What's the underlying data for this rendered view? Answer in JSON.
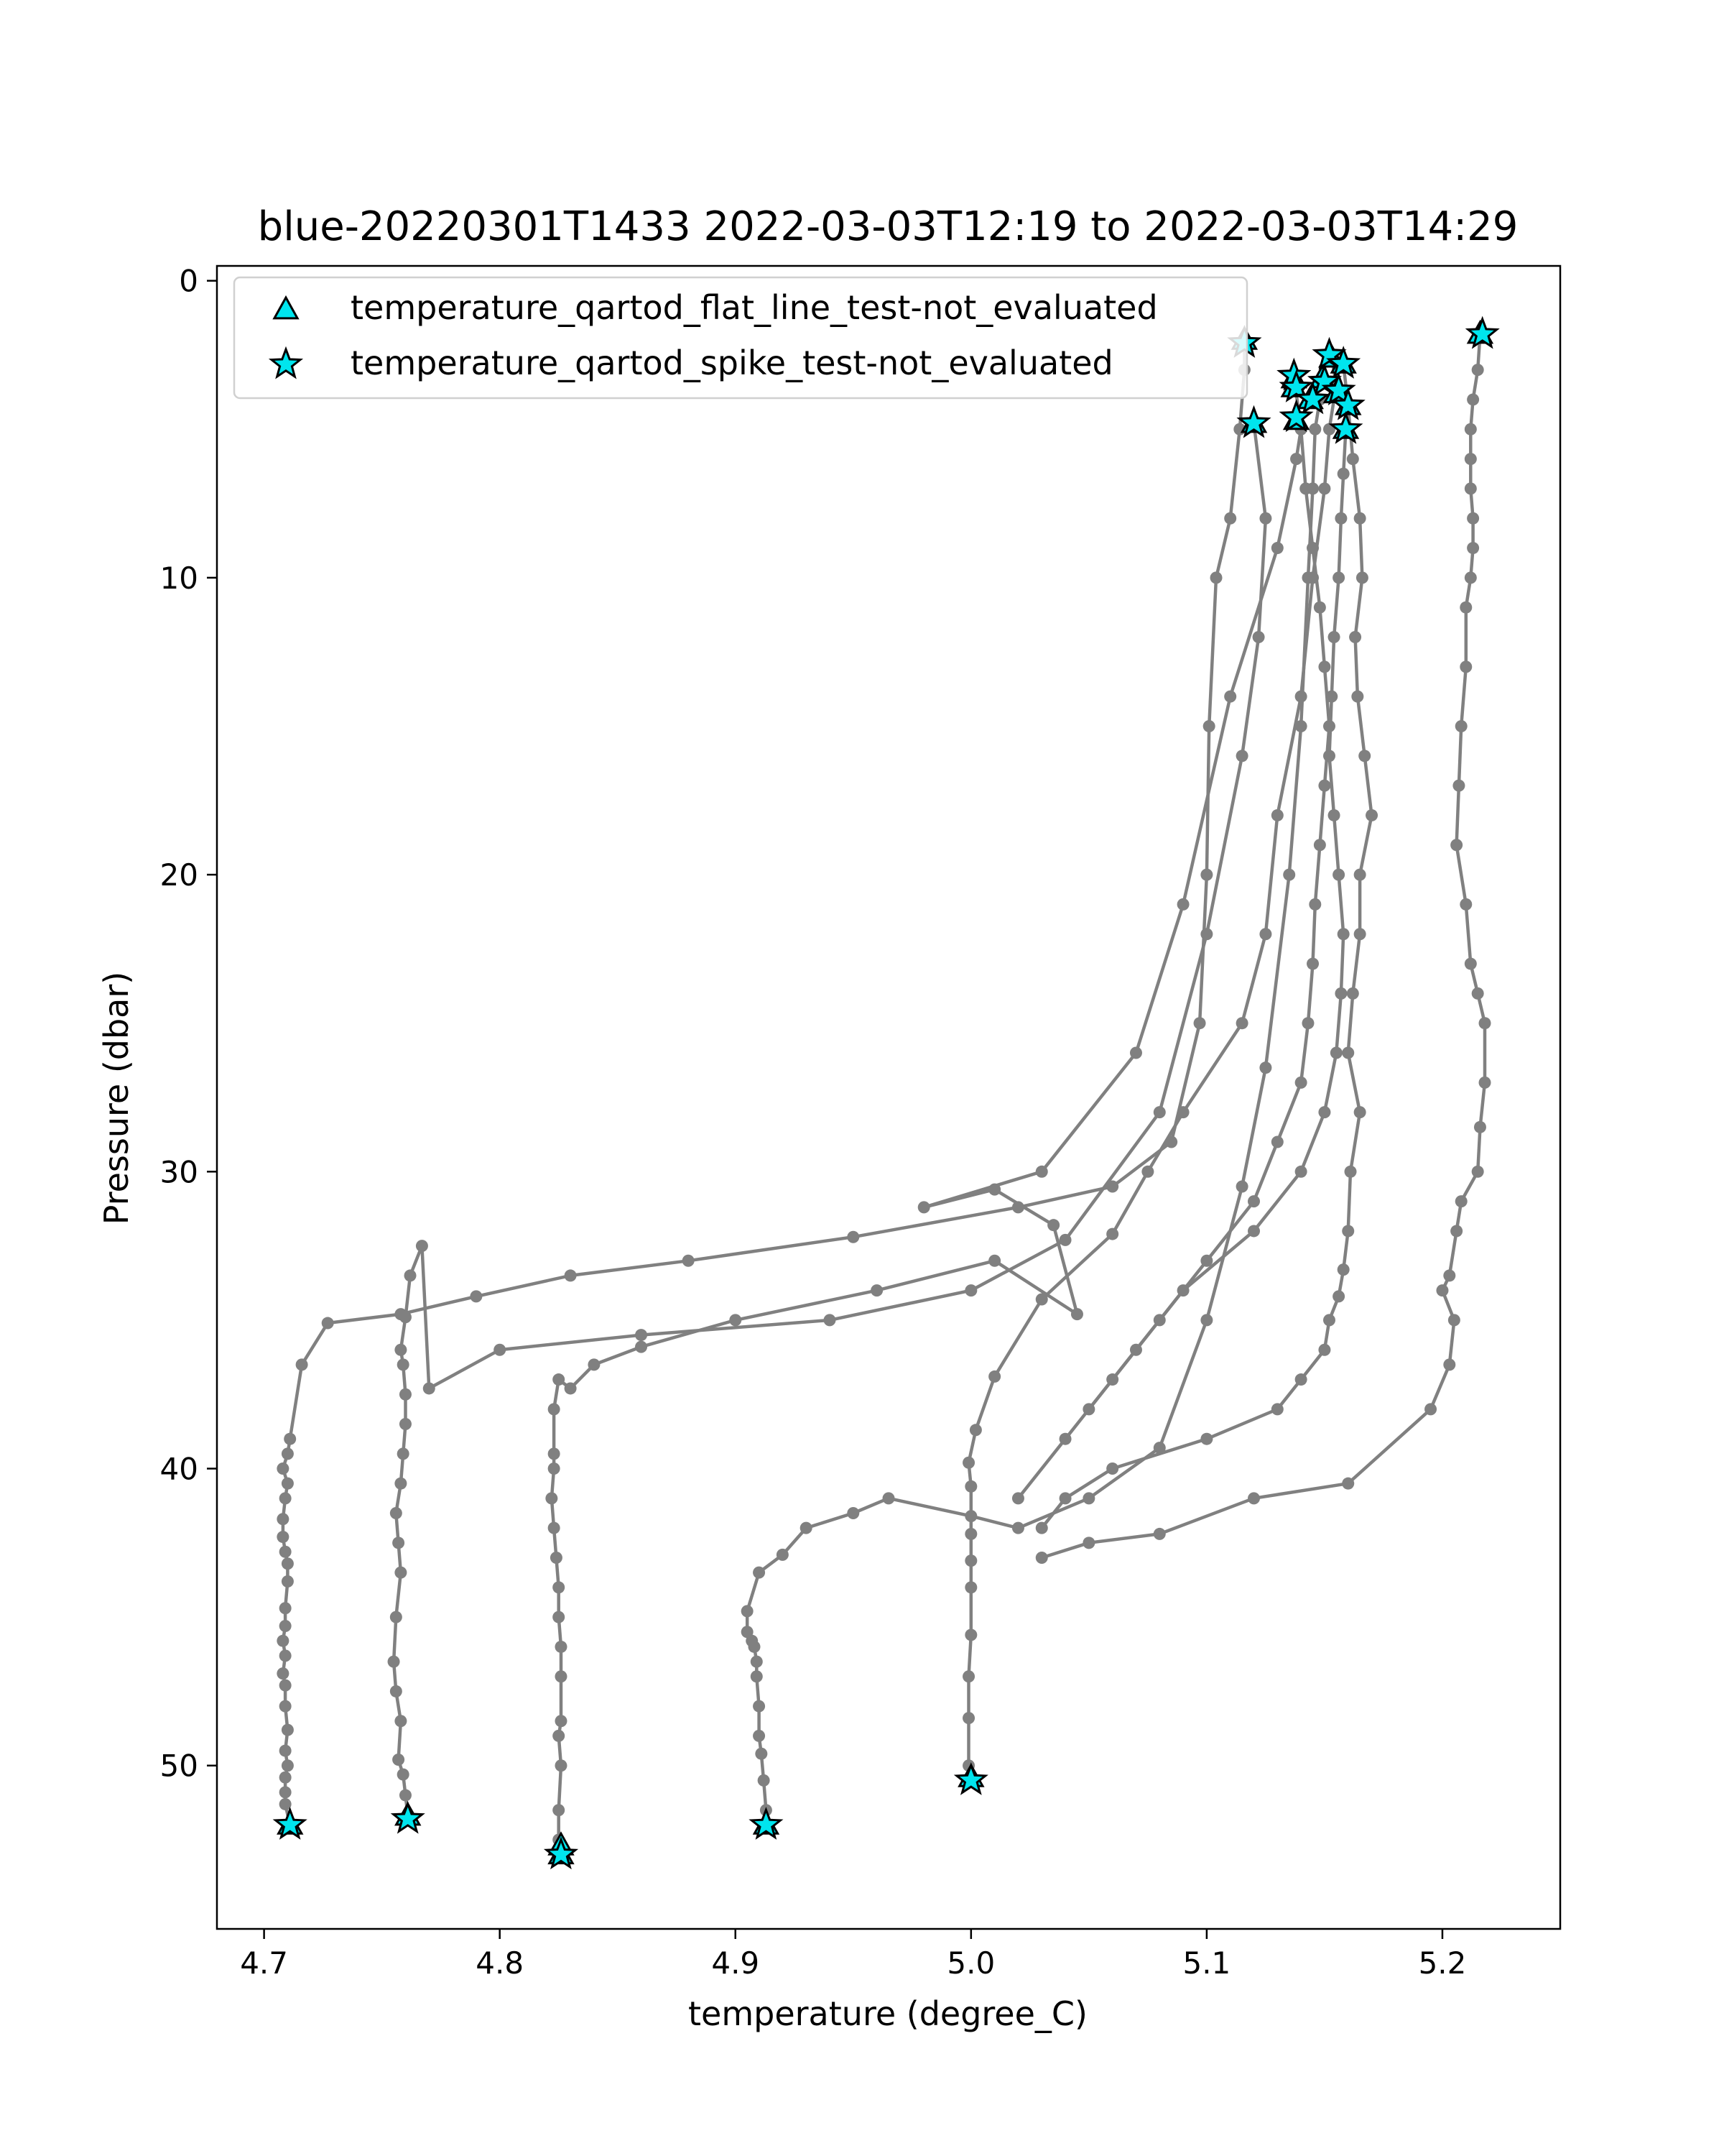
{
  "chart_data": {
    "type": "line",
    "title": "blue-20220301T1433 2022-03-03T12:19 to 2022-03-03T14:29",
    "xlabel": "temperature (degree_C)",
    "ylabel": "Pressure (dbar)",
    "xlim": [
      4.68,
      5.25
    ],
    "ylim": [
      55.5,
      -0.5
    ],
    "y_inverted": true,
    "grid": false,
    "legend_placement": "top-left",
    "xticks": [
      4.7,
      4.8,
      4.9,
      5.0,
      5.1,
      5.2
    ],
    "xtick_labels": [
      "4.7",
      "4.8",
      "4.9",
      "5.0",
      "5.1",
      "5.2"
    ],
    "yticks": [
      0,
      10,
      20,
      30,
      40,
      50
    ],
    "ytick_labels": [
      "0",
      "10",
      "20",
      "30",
      "40",
      "50"
    ],
    "line_color": "#808080",
    "marker_fill": "#00e5ee",
    "marker_edge": "#000000",
    "legend": [
      {
        "label": "temperature_qartod_flat_line_test-not_evaluated",
        "marker": "triangle"
      },
      {
        "label": "temperature_qartod_spike_test-not_evaluated",
        "marker": "star"
      }
    ],
    "series": [
      {
        "x": [
          4.711,
          4.709,
          4.709,
          4.709,
          4.71,
          4.709,
          4.71,
          4.709,
          4.709,
          4.708,
          4.709,
          4.708,
          4.709,
          4.709,
          4.71,
          4.71,
          4.709,
          4.708,
          4.708,
          4.709,
          4.71,
          4.708,
          4.71,
          4.711,
          4.716,
          4.727,
          4.758,
          4.79,
          4.83,
          4.88,
          4.95,
          5.02,
          5.06,
          5.085,
          5.097,
          5.1,
          5.101,
          5.104,
          5.11,
          5.114,
          5.116,
          5.116
        ],
        "y": [
          52.0,
          51.3,
          50.9,
          50.4,
          50.0,
          49.5,
          48.8,
          48.0,
          47.3,
          46.9,
          46.3,
          45.8,
          45.3,
          44.7,
          43.8,
          43.2,
          42.8,
          42.3,
          41.7,
          41.0,
          40.5,
          40.0,
          39.5,
          39.0,
          36.5,
          35.1,
          34.8,
          34.2,
          33.5,
          33.0,
          32.2,
          31.2,
          30.5,
          29.0,
          25.0,
          20.0,
          15.0,
          10.0,
          8.0,
          5.0,
          3.0,
          2.0
        ]
      },
      {
        "x": [
          4.761,
          4.76,
          4.759,
          4.757,
          4.758,
          4.756,
          4.755,
          4.756,
          4.758,
          4.757,
          4.756,
          4.758,
          4.759,
          4.76,
          4.76,
          4.759,
          4.758,
          4.76,
          4.762,
          4.767,
          4.77,
          4.8,
          4.86,
          4.94,
          5.0,
          5.04,
          5.08,
          5.1,
          5.115,
          5.122,
          5.125,
          5.12
        ],
        "y": [
          51.7,
          51.0,
          50.3,
          49.8,
          48.5,
          47.5,
          46.5,
          45.0,
          43.5,
          42.5,
          41.5,
          40.5,
          39.5,
          38.5,
          37.5,
          36.5,
          36.0,
          34.9,
          33.5,
          32.5,
          37.3,
          36.0,
          35.5,
          35.0,
          34.0,
          32.3,
          28.0,
          22.0,
          16.0,
          12.0,
          8.0,
          4.8
        ]
      },
      {
        "x": [
          4.826,
          4.825,
          4.825,
          4.826,
          4.825,
          4.826,
          4.826,
          4.826,
          4.825,
          4.825,
          4.824,
          4.823,
          4.822,
          4.823,
          4.823,
          4.823,
          4.825,
          4.83,
          4.84,
          4.86,
          4.9,
          4.96,
          5.01,
          5.045,
          5.035,
          5.01,
          4.98,
          5.03,
          5.07,
          5.09,
          5.11,
          5.13,
          5.138,
          5.14,
          5.138
        ],
        "y": [
          53.0,
          52.5,
          51.5,
          50.0,
          49.0,
          48.5,
          47.0,
          46.0,
          45.0,
          44.0,
          43.0,
          42.0,
          41.0,
          40.0,
          39.5,
          38.0,
          37.0,
          37.3,
          36.5,
          35.9,
          35.0,
          34.0,
          33.0,
          34.8,
          31.8,
          30.6,
          31.2,
          30.0,
          26.0,
          21.0,
          14.0,
          9.0,
          6.0,
          5.0,
          4.7
        ]
      },
      {
        "x": [
          4.914,
          4.913,
          4.912,
          4.911,
          4.91,
          4.91,
          4.909,
          4.909,
          4.908,
          4.907,
          4.905,
          4.905,
          4.91,
          4.92,
          4.93,
          4.95,
          4.965,
          5.0,
          5.02,
          5.05,
          5.08,
          5.1,
          5.115,
          5.125,
          5.135,
          5.14,
          5.143,
          5.145,
          5.146,
          5.148
        ],
        "y": [
          52.0,
          51.5,
          50.5,
          49.6,
          49.0,
          48.0,
          47.0,
          46.5,
          46.0,
          45.8,
          45.5,
          44.8,
          43.5,
          42.9,
          42.0,
          41.5,
          41.0,
          41.6,
          42.0,
          41.0,
          39.3,
          35.0,
          30.5,
          26.5,
          20.0,
          15.0,
          10.0,
          7.0,
          5.0,
          4.0
        ]
      },
      {
        "x": [
          5.0,
          4.999,
          4.999,
          4.999,
          5.0,
          5.0,
          5.0,
          5.0,
          5.0,
          4.999,
          5.002,
          5.01,
          5.03,
          5.06,
          5.075,
          5.09,
          5.115,
          5.125,
          5.13,
          5.14,
          5.145,
          5.15,
          5.152,
          5.155,
          5.153
        ],
        "y": [
          50.5,
          50.0,
          48.4,
          47.0,
          45.6,
          44.0,
          43.1,
          42.2,
          40.6,
          39.8,
          38.7,
          36.9,
          34.3,
          32.1,
          30.0,
          28.0,
          25.0,
          22.0,
          18.0,
          14.0,
          10.0,
          7.0,
          5.0,
          3.5,
          2.6
        ]
      },
      {
        "x": [
          5.216,
          5.215,
          5.213,
          5.212,
          5.212,
          5.212,
          5.213,
          5.213,
          5.212,
          5.21,
          5.21,
          5.208,
          5.207,
          5.206,
          5.21,
          5.212,
          5.215,
          5.218,
          5.218,
          5.216,
          5.215,
          5.208,
          5.206,
          5.203,
          5.2,
          5.205,
          5.203,
          5.195,
          5.16,
          5.12,
          5.08,
          5.05,
          5.03
        ],
        "y": [
          1.8,
          3.0,
          4.0,
          5.0,
          6.0,
          7.0,
          8.0,
          9.0,
          10.0,
          11.0,
          13.0,
          15.0,
          17.0,
          19.0,
          21.0,
          23.0,
          24.0,
          25.0,
          27.0,
          28.5,
          30.0,
          31.0,
          32.0,
          33.5,
          34.0,
          35.0,
          36.5,
          38.0,
          40.5,
          41.0,
          42.2,
          42.5,
          43.0
        ]
      },
      {
        "x": [
          5.158,
          5.16,
          5.162,
          5.165,
          5.166,
          5.163,
          5.164,
          5.167,
          5.17,
          5.165,
          5.165,
          5.162,
          5.16,
          5.165,
          5.161,
          5.16,
          5.158,
          5.156,
          5.152,
          5.15,
          5.14,
          5.13,
          5.1,
          5.06,
          5.04,
          5.03
        ],
        "y": [
          2.8,
          4.2,
          6.0,
          8.0,
          10.0,
          12.0,
          14.0,
          16.0,
          18.0,
          20.0,
          22.0,
          24.0,
          26.0,
          28.0,
          30.0,
          32.0,
          33.3,
          34.2,
          35.0,
          36.0,
          37.0,
          38.0,
          39.0,
          40.0,
          41.0,
          42.0
        ]
      },
      {
        "x": [
          5.159,
          5.158,
          5.157,
          5.156,
          5.154,
          5.153,
          5.152,
          5.154,
          5.156,
          5.158,
          5.157,
          5.155,
          5.15,
          5.14,
          5.12,
          5.09,
          5.07,
          5.05
        ],
        "y": [
          5.0,
          6.5,
          8.0,
          10.0,
          12.0,
          14.0,
          16.0,
          18.0,
          20.0,
          22.0,
          24.0,
          26.0,
          28.0,
          30.0,
          32.0,
          34.0,
          36.0,
          38.0
        ]
      },
      {
        "x": [
          5.137,
          5.14,
          5.142,
          5.145,
          5.148,
          5.15,
          5.152,
          5.15,
          5.148,
          5.146,
          5.145,
          5.143,
          5.14,
          5.13,
          5.12,
          5.1,
          5.08,
          5.06,
          5.04,
          5.02
        ],
        "y": [
          3.2,
          5.0,
          7.0,
          9.0,
          11.0,
          13.0,
          15.0,
          17.0,
          19.0,
          21.0,
          23.0,
          25.0,
          27.0,
          29.0,
          31.0,
          33.0,
          35.0,
          37.0,
          39.0,
          41.0
        ]
      }
    ],
    "flat_line_markers": [
      {
        "x": 4.711,
        "y": 52.0
      },
      {
        "x": 4.761,
        "y": 51.7
      },
      {
        "x": 4.826,
        "y": 52.7
      },
      {
        "x": 4.826,
        "y": 53.0
      },
      {
        "x": 4.913,
        "y": 52.0
      },
      {
        "x": 5.0,
        "y": 50.4
      },
      {
        "x": 5.116,
        "y": 2.0
      },
      {
        "x": 5.216,
        "y": 1.8
      },
      {
        "x": 5.137,
        "y": 3.3
      },
      {
        "x": 5.137,
        "y": 3.6
      },
      {
        "x": 5.153,
        "y": 2.6
      },
      {
        "x": 5.158,
        "y": 2.8
      },
      {
        "x": 5.149,
        "y": 3.3
      },
      {
        "x": 5.155,
        "y": 3.8
      },
      {
        "x": 5.16,
        "y": 4.2
      },
      {
        "x": 5.159,
        "y": 5.0
      },
      {
        "x": 5.144,
        "y": 4.0
      },
      {
        "x": 5.138,
        "y": 4.7
      },
      {
        "x": 5.12,
        "y": 4.8
      }
    ],
    "spike_markers": [
      {
        "x": 4.711,
        "y": 52.0
      },
      {
        "x": 4.761,
        "y": 51.8
      },
      {
        "x": 4.826,
        "y": 53.0
      },
      {
        "x": 4.913,
        "y": 52.0
      },
      {
        "x": 5.0,
        "y": 50.5
      },
      {
        "x": 5.116,
        "y": 2.1
      },
      {
        "x": 5.217,
        "y": 1.8
      },
      {
        "x": 5.137,
        "y": 3.2
      },
      {
        "x": 5.138,
        "y": 3.6
      },
      {
        "x": 5.152,
        "y": 2.5
      },
      {
        "x": 5.158,
        "y": 2.8
      },
      {
        "x": 5.15,
        "y": 3.4
      },
      {
        "x": 5.156,
        "y": 3.7
      },
      {
        "x": 5.16,
        "y": 4.2
      },
      {
        "x": 5.159,
        "y": 5.0
      },
      {
        "x": 5.145,
        "y": 4.0
      },
      {
        "x": 5.138,
        "y": 4.6
      },
      {
        "x": 5.12,
        "y": 4.8
      }
    ]
  }
}
